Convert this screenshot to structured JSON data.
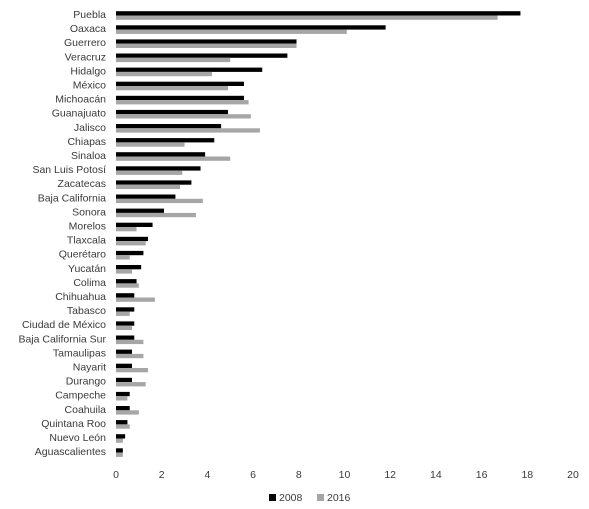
{
  "chart_data": {
    "type": "bar",
    "orientation": "horizontal",
    "categories": [
      "Puebla",
      "Oaxaca",
      "Guerrero",
      "Veracruz",
      "Hidalgo",
      "México",
      "Michoacán",
      "Guanajuato",
      "Jalisco",
      "Chiapas",
      "Sinaloa",
      "San Luis Potosí",
      "Zacatecas",
      "Baja California",
      "Sonora",
      "Morelos",
      "Tlaxcala",
      "Querétaro",
      "Yucatán",
      "Colima",
      "Chihuahua",
      "Tabasco",
      "Ciudad de México",
      "Baja California Sur",
      "Tamaulipas",
      "Nayarit",
      "Durango",
      "Campeche",
      "Coahuila",
      "Quintana Roo",
      "Nuevo León",
      "Aguascalientes"
    ],
    "series": [
      {
        "name": "2008",
        "color": "#000000",
        "values": [
          17.7,
          11.8,
          7.9,
          7.5,
          6.4,
          5.6,
          5.6,
          4.9,
          4.6,
          4.3,
          3.9,
          3.7,
          3.3,
          2.6,
          2.1,
          1.6,
          1.4,
          1.2,
          1.1,
          0.9,
          0.8,
          0.8,
          0.8,
          0.8,
          0.7,
          0.7,
          0.7,
          0.6,
          0.6,
          0.5,
          0.4,
          0.3
        ]
      },
      {
        "name": "2016",
        "color": "#a6a6a6",
        "values": [
          16.7,
          10.1,
          7.9,
          5.0,
          4.2,
          4.9,
          5.8,
          5.9,
          6.3,
          3.0,
          5.0,
          2.9,
          2.8,
          3.8,
          3.5,
          0.9,
          1.3,
          0.6,
          0.7,
          1.0,
          1.7,
          0.6,
          0.7,
          1.2,
          1.2,
          1.4,
          1.3,
          0.5,
          1.0,
          0.6,
          0.3,
          0.3
        ]
      }
    ],
    "xlim": [
      0,
      20
    ],
    "xticks": [
      0,
      2,
      4,
      6,
      8,
      10,
      12,
      14,
      16,
      18,
      20
    ],
    "xtick_labels": [
      "0",
      "2",
      "4",
      "6",
      "8",
      "10",
      "12",
      "14",
      "16",
      "18",
      "20"
    ],
    "title": "",
    "xlabel": "",
    "ylabel": "",
    "grid": false,
    "legend": {
      "placement": "bottom",
      "entries": [
        "2008",
        "2016"
      ]
    }
  }
}
